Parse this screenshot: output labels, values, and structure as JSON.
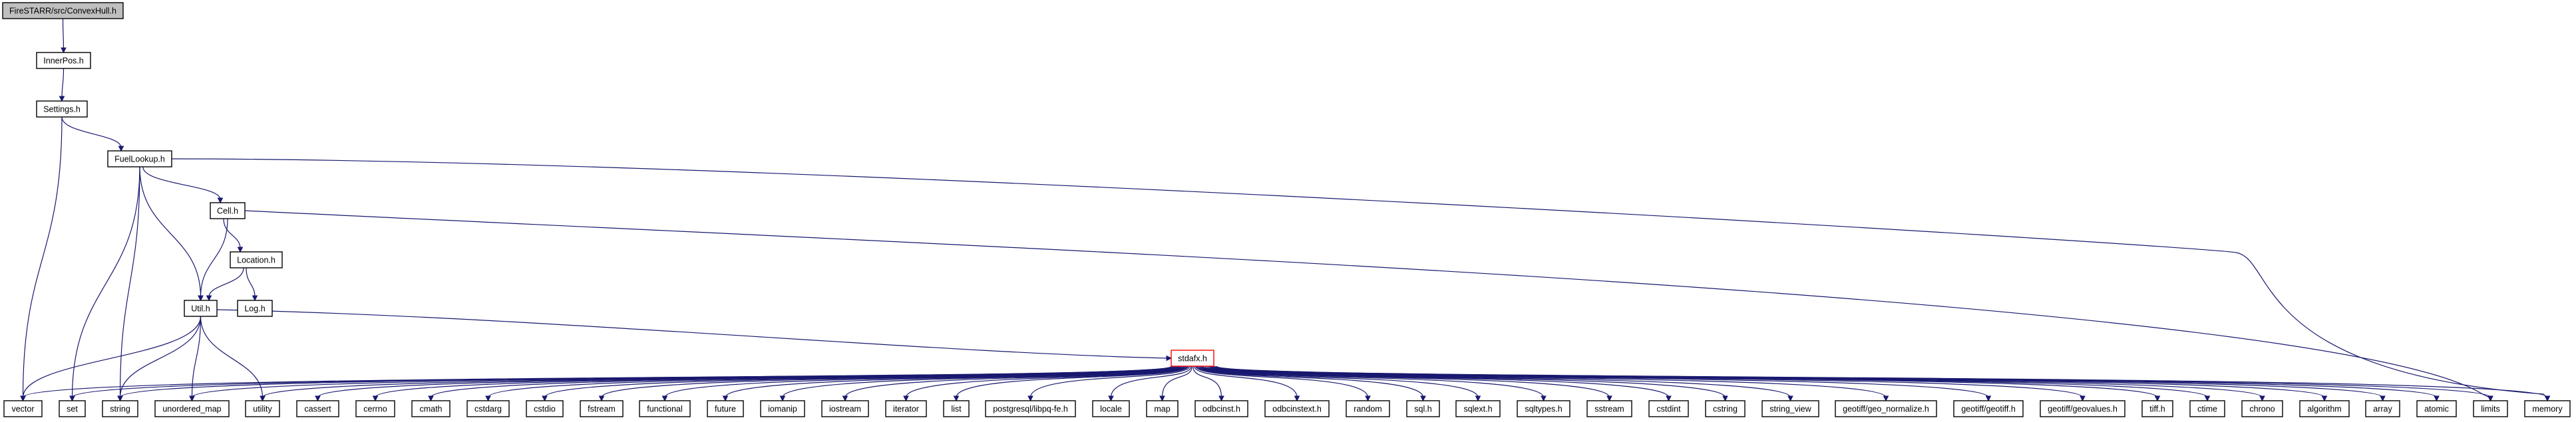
{
  "title": "FireSTARR/src/ConvexHull.h",
  "colors": {
    "edge": "#191970",
    "node_border": "#000000",
    "root_fill": "#bfbfbf",
    "incomplete_border": "#ff0000"
  },
  "nodes": [
    {
      "id": "root",
      "label": "FireSTARR/src/ConvexHull.h",
      "style": "root"
    },
    {
      "id": "innerpos",
      "label": "InnerPos.h"
    },
    {
      "id": "settings",
      "label": "Settings.h"
    },
    {
      "id": "fuellookup",
      "label": "FuelLookup.h"
    },
    {
      "id": "cell",
      "label": "Cell.h"
    },
    {
      "id": "location",
      "label": "Location.h"
    },
    {
      "id": "util",
      "label": "Util.h"
    },
    {
      "id": "log",
      "label": "Log.h"
    },
    {
      "id": "stdafx",
      "label": "stdafx.h",
      "style": "incomplete"
    },
    {
      "id": "vector",
      "label": "vector"
    },
    {
      "id": "set",
      "label": "set"
    },
    {
      "id": "string",
      "label": "string"
    },
    {
      "id": "unordered_map",
      "label": "unordered_map"
    },
    {
      "id": "utility",
      "label": "utility"
    },
    {
      "id": "cassert",
      "label": "cassert"
    },
    {
      "id": "cerrno",
      "label": "cerrno"
    },
    {
      "id": "cmath",
      "label": "cmath"
    },
    {
      "id": "cstdarg",
      "label": "cstdarg"
    },
    {
      "id": "cstdio",
      "label": "cstdio"
    },
    {
      "id": "fstream",
      "label": "fstream"
    },
    {
      "id": "functional",
      "label": "functional"
    },
    {
      "id": "future",
      "label": "future"
    },
    {
      "id": "iomanip",
      "label": "iomanip"
    },
    {
      "id": "iostream",
      "label": "iostream"
    },
    {
      "id": "iterator",
      "label": "iterator"
    },
    {
      "id": "list",
      "label": "list"
    },
    {
      "id": "libpq",
      "label": "postgresql/libpq-fe.h"
    },
    {
      "id": "locale",
      "label": "locale"
    },
    {
      "id": "map",
      "label": "map"
    },
    {
      "id": "odbcinst",
      "label": "odbcinst.h"
    },
    {
      "id": "odbcinstext",
      "label": "odbcinstext.h"
    },
    {
      "id": "random",
      "label": "random"
    },
    {
      "id": "sql",
      "label": "sql.h"
    },
    {
      "id": "sqlext",
      "label": "sqlext.h"
    },
    {
      "id": "sqltypes",
      "label": "sqltypes.h"
    },
    {
      "id": "sstream",
      "label": "sstream"
    },
    {
      "id": "cstdint",
      "label": "cstdint"
    },
    {
      "id": "cstring",
      "label": "cstring"
    },
    {
      "id": "string_view",
      "label": "string_view"
    },
    {
      "id": "geo_normalize",
      "label": "geotiff/geo_normalize.h"
    },
    {
      "id": "geotiff",
      "label": "geotiff/geotiff.h"
    },
    {
      "id": "geovalues",
      "label": "geotiff/geovalues.h"
    },
    {
      "id": "tiff",
      "label": "tiff.h"
    },
    {
      "id": "ctime",
      "label": "ctime"
    },
    {
      "id": "chrono",
      "label": "chrono"
    },
    {
      "id": "algorithm",
      "label": "algorithm"
    },
    {
      "id": "array",
      "label": "array"
    },
    {
      "id": "atomic",
      "label": "atomic"
    },
    {
      "id": "limits",
      "label": "limits"
    },
    {
      "id": "memory",
      "label": "memory"
    }
  ],
  "edges": [
    [
      "root",
      "innerpos"
    ],
    [
      "innerpos",
      "settings"
    ],
    [
      "settings",
      "fuellookup"
    ],
    [
      "settings",
      "vector"
    ],
    [
      "fuellookup",
      "cell"
    ],
    [
      "fuellookup",
      "util"
    ],
    [
      "fuellookup",
      "set"
    ],
    [
      "fuellookup",
      "string"
    ],
    [
      "fuellookup",
      "memory"
    ],
    [
      "cell",
      "location"
    ],
    [
      "cell",
      "util"
    ],
    [
      "cell",
      "limits"
    ],
    [
      "location",
      "util"
    ],
    [
      "location",
      "log"
    ],
    [
      "util",
      "stdafx"
    ],
    [
      "util",
      "vector"
    ],
    [
      "util",
      "string"
    ],
    [
      "util",
      "unordered_map"
    ],
    [
      "util",
      "utility"
    ],
    [
      "stdafx",
      "vector"
    ],
    [
      "stdafx",
      "set"
    ],
    [
      "stdafx",
      "string"
    ],
    [
      "stdafx",
      "unordered_map"
    ],
    [
      "stdafx",
      "utility"
    ],
    [
      "stdafx",
      "cassert"
    ],
    [
      "stdafx",
      "cerrno"
    ],
    [
      "stdafx",
      "cmath"
    ],
    [
      "stdafx",
      "cstdarg"
    ],
    [
      "stdafx",
      "cstdio"
    ],
    [
      "stdafx",
      "fstream"
    ],
    [
      "stdafx",
      "functional"
    ],
    [
      "stdafx",
      "future"
    ],
    [
      "stdafx",
      "iomanip"
    ],
    [
      "stdafx",
      "iostream"
    ],
    [
      "stdafx",
      "iterator"
    ],
    [
      "stdafx",
      "list"
    ],
    [
      "stdafx",
      "libpq"
    ],
    [
      "stdafx",
      "locale"
    ],
    [
      "stdafx",
      "map"
    ],
    [
      "stdafx",
      "odbcinst"
    ],
    [
      "stdafx",
      "odbcinstext"
    ],
    [
      "stdafx",
      "random"
    ],
    [
      "stdafx",
      "sql"
    ],
    [
      "stdafx",
      "sqlext"
    ],
    [
      "stdafx",
      "sqltypes"
    ],
    [
      "stdafx",
      "sstream"
    ],
    [
      "stdafx",
      "cstdint"
    ],
    [
      "stdafx",
      "cstring"
    ],
    [
      "stdafx",
      "string_view"
    ],
    [
      "stdafx",
      "geo_normalize"
    ],
    [
      "stdafx",
      "geotiff"
    ],
    [
      "stdafx",
      "geovalues"
    ],
    [
      "stdafx",
      "tiff"
    ],
    [
      "stdafx",
      "ctime"
    ],
    [
      "stdafx",
      "chrono"
    ],
    [
      "stdafx",
      "algorithm"
    ],
    [
      "stdafx",
      "array"
    ],
    [
      "stdafx",
      "atomic"
    ],
    [
      "stdafx",
      "limits"
    ],
    [
      "stdafx",
      "memory"
    ]
  ]
}
